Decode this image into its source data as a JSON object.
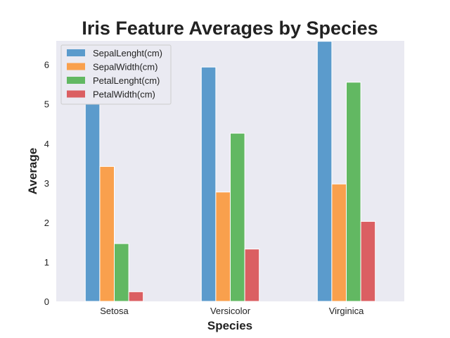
{
  "chart_data": {
    "type": "bar",
    "title": "Iris Feature Averages by Species",
    "xlabel": "Species",
    "ylabel": "Average",
    "categories": [
      "Setosa",
      "Versicolor",
      "Virginica"
    ],
    "ylim": [
      0,
      6.6
    ],
    "yticks": [
      0,
      1,
      2,
      3,
      4,
      5,
      6
    ],
    "grid": false,
    "legend_position": "top-left",
    "series": [
      {
        "name": "SepalLenght(cm)",
        "color": "#5b9bcc",
        "values": [
          5.006,
          5.936,
          6.588
        ]
      },
      {
        "name": "SepalWidth(cm)",
        "color": "#f9a04d",
        "values": [
          3.418,
          2.77,
          2.974
        ]
      },
      {
        "name": "PetalLenght(cm)",
        "color": "#62b862",
        "values": [
          1.464,
          4.26,
          5.552
        ]
      },
      {
        "name": "PetalWidth(cm)",
        "color": "#db5f62",
        "values": [
          0.244,
          1.326,
          2.026
        ]
      }
    ]
  }
}
